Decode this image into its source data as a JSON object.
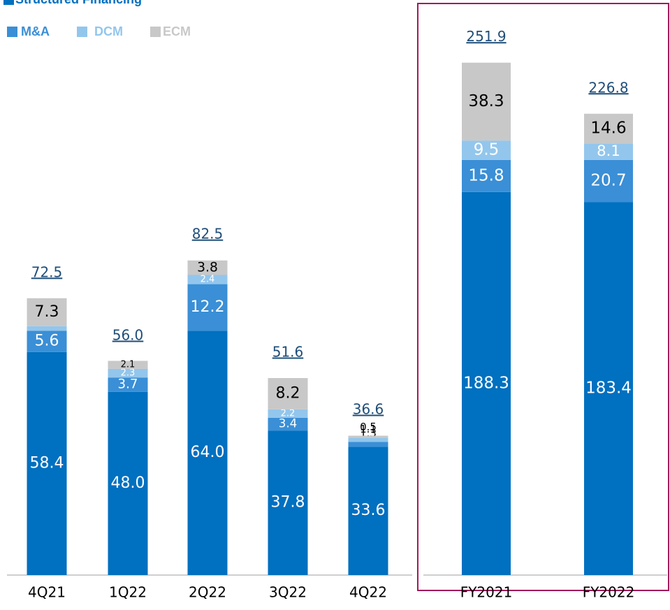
{
  "chart_data": [
    {
      "type": "bar",
      "stacked": true,
      "categories": [
        "4Q21",
        "1Q22",
        "2Q22",
        "3Q22",
        "4Q22"
      ],
      "ylim": [
        0,
        140
      ],
      "series": [
        {
          "name": "Structured Financing",
          "color": "#0070c0",
          "values": [
            58.4,
            48.0,
            64.0,
            37.8,
            33.6
          ],
          "value_labels": [
            "58.4",
            "48.0",
            "64.0",
            "37.8",
            "33.6"
          ]
        },
        {
          "name": "M&A",
          "color": "#3a8fd6",
          "values": [
            5.6,
            3.7,
            12.2,
            3.4,
            1.3
          ],
          "value_labels": [
            "5.6",
            "3.7",
            "12.2",
            "3.4",
            "1.3"
          ]
        },
        {
          "name": "DCM",
          "color": "#93c6ec",
          "values": [
            1.2,
            2.3,
            2.4,
            2.2,
            1.1
          ],
          "value_labels": [
            "1.2",
            "2.3",
            "2.4",
            "2.2",
            "1.1"
          ]
        },
        {
          "name": "ECM",
          "color": "#c8c8c8",
          "values": [
            7.3,
            2.1,
            3.8,
            8.2,
            0.5
          ],
          "value_labels": [
            "7.3",
            "2.1",
            "3.8",
            "8.2",
            "0.5"
          ]
        }
      ],
      "totals": [
        72.5,
        56.0,
        82.5,
        51.6,
        36.6
      ],
      "total_labels": [
        "72.5",
        "56.0",
        "82.5",
        "51.6",
        "36.6"
      ]
    },
    {
      "type": "bar",
      "stacked": true,
      "categories": [
        "FY2021",
        "FY2022"
      ],
      "ylim": [
        0,
        270
      ],
      "series": [
        {
          "color": "#0070c0",
          "values": [
            188.3,
            183.4
          ],
          "value_labels": [
            "188.3",
            "183.4"
          ]
        },
        {
          "color": "#3a8fd6",
          "values": [
            15.8,
            20.7
          ],
          "value_labels": [
            "15.8",
            "20.7"
          ]
        },
        {
          "color": "#93c6ec",
          "values": [
            9.5,
            8.1
          ],
          "value_labels": [
            "9.5",
            "8.1"
          ]
        },
        {
          "color": "#c8c8c8",
          "values": [
            38.3,
            14.6
          ],
          "value_labels": [
            "38.3",
            "14.6"
          ]
        }
      ],
      "totals": [
        251.9,
        226.8
      ],
      "total_labels": [
        "251.9",
        "226.8"
      ]
    }
  ]
}
